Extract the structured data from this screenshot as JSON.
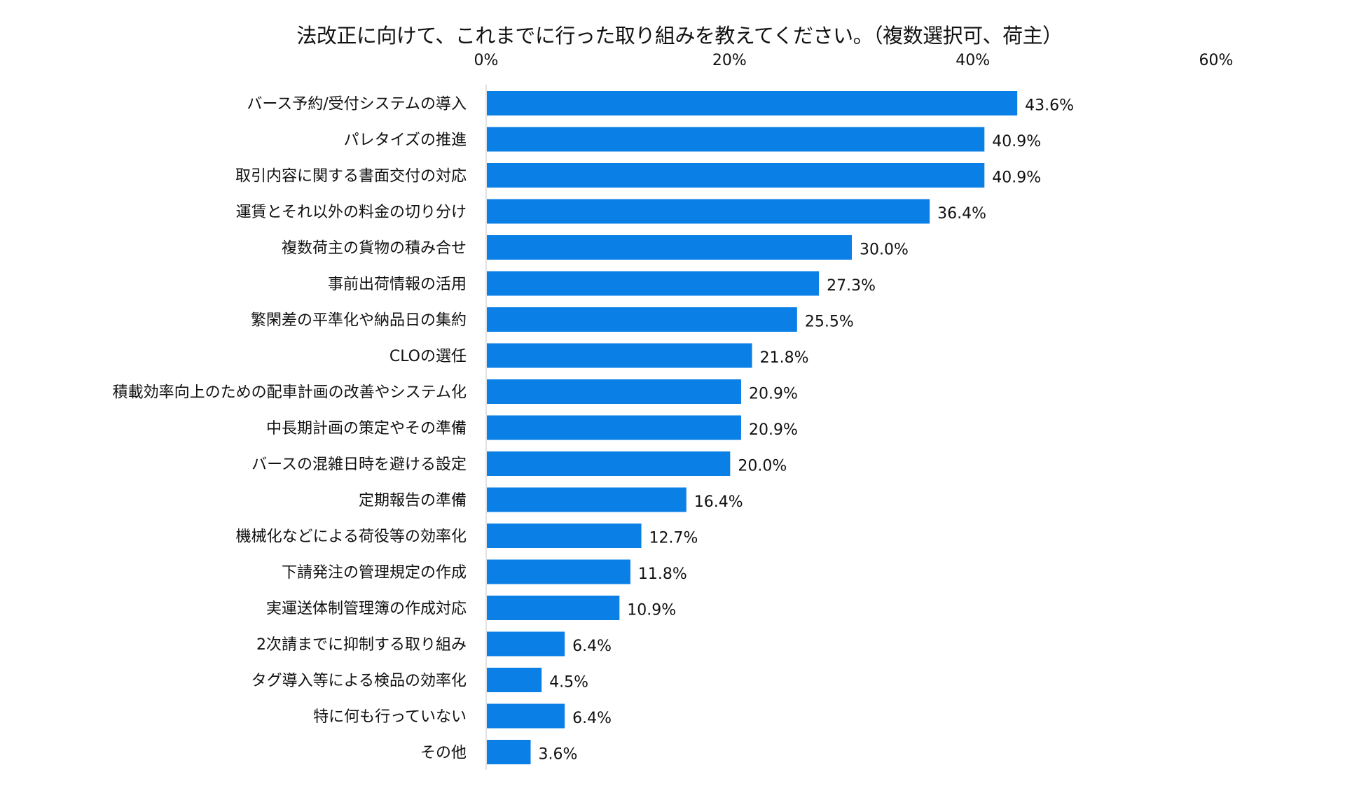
{
  "chart_data": {
    "type": "bar",
    "orientation": "horizontal",
    "title": "法改正に向けて、これまでに行った取り組みを教えてください。（複数選択可、荷主）",
    "xlim": [
      0,
      60
    ],
    "xticks": [
      "0%",
      "20%",
      "40%",
      "60%"
    ],
    "xtick_values": [
      0,
      20,
      40,
      60
    ],
    "axis_position": "top",
    "grid": false,
    "bar_color": "#0a7fe6",
    "categories": [
      "バース予約/受付システムの導入",
      "パレタイズの推進",
      "取引内容に関する書面交付の対応",
      "運賃とそれ以外の料金の切り分け",
      "複数荷主の貨物の積み合せ",
      "事前出荷情報の活用",
      "繁閑差の平準化や納品日の集約",
      "CLOの選任",
      "積載効率向上のための配車計画の改善やシステム化",
      "中長期計画の策定やその準備",
      "バースの混雑日時を避ける設定",
      "定期報告の準備",
      "機械化などによる荷役等の効率化",
      "下請発注の管理規定の作成",
      "実運送体制管理簿の作成対応",
      "2次請までに抑制する取り組み",
      "タグ導入等による検品の効率化",
      "特に何も行っていない",
      "その他"
    ],
    "values": [
      43.6,
      40.9,
      40.9,
      36.4,
      30.0,
      27.3,
      25.5,
      21.8,
      20.9,
      20.9,
      20.0,
      16.4,
      12.7,
      11.8,
      10.9,
      6.4,
      4.5,
      6.4,
      3.6
    ],
    "value_labels": [
      "43.6%",
      "40.9%",
      "40.9%",
      "36.4%",
      "30.0%",
      "27.3%",
      "25.5%",
      "21.8%",
      "20.9%",
      "20.9%",
      "20.0%",
      "16.4%",
      "12.7%",
      "11.8%",
      "10.9%",
      "6.4%",
      "4.5%",
      "6.4%",
      "3.6%"
    ]
  }
}
